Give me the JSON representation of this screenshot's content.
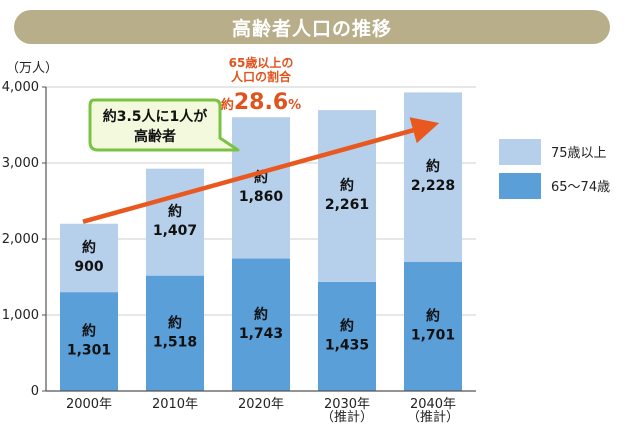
{
  "banner": {
    "title": "高齢者人口の推移"
  },
  "colors": {
    "banner": "#b9ae8a",
    "old": "#b6d0ec",
    "young": "#5b9fd9",
    "arrow": "#e8581f",
    "callout_border": "#7cc242",
    "callout_fill": "#f3f9dc",
    "axis": "#555555",
    "grid": "#cfcfcf"
  },
  "chart_data": {
    "type": "bar",
    "stacked": true,
    "ylabel": "（万人）",
    "ylim": [
      0,
      4000
    ],
    "yticks": [
      0,
      1000,
      2000,
      3000,
      4000
    ],
    "ytick_labels": [
      "0",
      "1,000",
      "2,000",
      "3,000",
      "4,000"
    ],
    "grid": true,
    "categories": [
      "2000年",
      "2010年",
      "2020年",
      "2030年",
      "2040年"
    ],
    "category_notes": [
      "",
      "",
      "",
      "（推計）",
      "（推計）"
    ],
    "value_prefix": "約",
    "legend_position": "right",
    "series": [
      {
        "name": "65～74歳",
        "values": [
          1301,
          1518,
          1743,
          1435,
          1701
        ],
        "labels": [
          "1,301",
          "1,518",
          "1,743",
          "1,435",
          "1,701"
        ]
      },
      {
        "name": "75歳以上",
        "values": [
          900,
          1407,
          1860,
          2261,
          2228
        ],
        "labels": [
          "900",
          "1,407",
          "1,860",
          "2,261",
          "2,228"
        ]
      }
    ],
    "annotations": {
      "callout_line1": "約3.5人に1人が",
      "callout_line2": "高齢者",
      "ratio_line1": "65歳以上の",
      "ratio_line2": "人口の割合",
      "ratio_prefix": "約",
      "ratio_value": "28.6",
      "ratio_unit": "%"
    }
  }
}
